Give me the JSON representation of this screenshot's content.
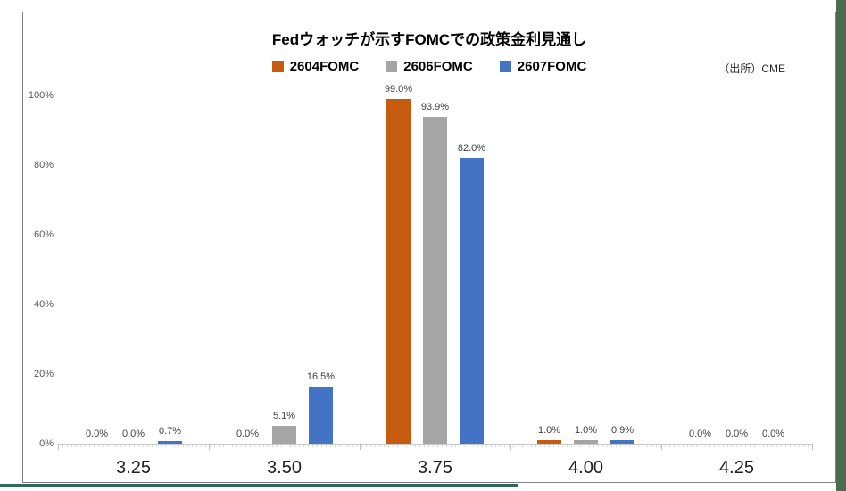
{
  "page": {
    "right_edge_color": "#4C6B50",
    "bottom_edge_color": "#2F6A58"
  },
  "chart_data": {
    "type": "bar",
    "title": "Fedウォッチが示すFOMCでの政策金利見通し",
    "source": "（出所）CME",
    "categories": [
      "3.25",
      "3.50",
      "3.75",
      "4.00",
      "4.25"
    ],
    "series": [
      {
        "name": "2604FOMC",
        "color": "#C55A11",
        "values": [
          0.0,
          0.0,
          99.0,
          1.0,
          0.0
        ],
        "labels": [
          "0.0%",
          "0.0%",
          "99.0%",
          "1.0%",
          "0.0%"
        ]
      },
      {
        "name": "2606FOMC",
        "color": "#A5A5A5",
        "values": [
          0.0,
          5.1,
          93.9,
          1.0,
          0.0
        ],
        "labels": [
          "0.0%",
          "5.1%",
          "93.9%",
          "1.0%",
          "0.0%"
        ]
      },
      {
        "name": "2607FOMC",
        "color": "#4472C4",
        "values": [
          0.7,
          16.5,
          82.0,
          0.9,
          0.0
        ],
        "labels": [
          "0.7%",
          "16.5%",
          "82.0%",
          "0.9%",
          "0.0%"
        ]
      }
    ],
    "xlabel": "",
    "ylabel": "",
    "ylim": [
      0,
      100
    ],
    "yticks": [
      "0%",
      "20%",
      "40%",
      "60%",
      "80%",
      "100%"
    ],
    "grid": false,
    "legend_position": "top-center"
  }
}
